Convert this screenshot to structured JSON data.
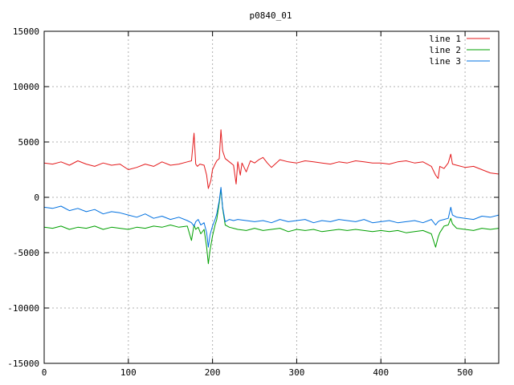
{
  "chart_data": {
    "type": "line",
    "title": "p0840_01",
    "xlabel": "",
    "ylabel": "",
    "xlim": [
      0,
      540
    ],
    "ylim": [
      -15000,
      15000
    ],
    "x_ticks": [
      0,
      100,
      200,
      300,
      400,
      500
    ],
    "y_ticks": [
      -15000,
      -10000,
      -5000,
      0,
      5000,
      10000,
      15000
    ],
    "grid": true,
    "legend_position": "top-right",
    "series": [
      {
        "name": "line 1",
        "color": "#e41a1c",
        "x": [
          0,
          10,
          20,
          30,
          40,
          50,
          60,
          70,
          80,
          90,
          100,
          110,
          120,
          130,
          140,
          150,
          160,
          170,
          175,
          178,
          180,
          182,
          185,
          190,
          193,
          195,
          198,
          200,
          203,
          205,
          208,
          210,
          212,
          215,
          220,
          225,
          228,
          230,
          233,
          235,
          240,
          245,
          250,
          255,
          260,
          265,
          270,
          280,
          290,
          300,
          310,
          320,
          330,
          340,
          350,
          360,
          370,
          380,
          390,
          400,
          410,
          420,
          430,
          440,
          450,
          460,
          465,
          468,
          470,
          475,
          480,
          483,
          485,
          490,
          500,
          510,
          520,
          530,
          540
        ],
        "y": [
          3100,
          3000,
          3200,
          2900,
          3300,
          3000,
          2800,
          3100,
          2900,
          3000,
          2500,
          2700,
          3000,
          2800,
          3200,
          2900,
          3000,
          3200,
          3300,
          5800,
          3000,
          2800,
          3000,
          2900,
          2000,
          800,
          1500,
          2500,
          3000,
          3300,
          3500,
          6100,
          4200,
          3500,
          3200,
          2900,
          1200,
          3200,
          2000,
          3100,
          2300,
          3300,
          3100,
          3400,
          3600,
          3100,
          2700,
          3400,
          3200,
          3100,
          3300,
          3200,
          3100,
          3000,
          3200,
          3100,
          3300,
          3200,
          3100,
          3100,
          3000,
          3200,
          3300,
          3100,
          3200,
          2800,
          2000,
          1700,
          2800,
          2600,
          3100,
          3900,
          3000,
          2900,
          2700,
          2800,
          2500,
          2200,
          2100
        ]
      },
      {
        "name": "line 2",
        "color": "#00a000",
        "x": [
          0,
          10,
          20,
          30,
          40,
          50,
          60,
          70,
          80,
          90,
          100,
          110,
          120,
          130,
          140,
          150,
          160,
          170,
          175,
          178,
          180,
          183,
          186,
          190,
          193,
          195,
          197,
          200,
          203,
          205,
          208,
          210,
          212,
          215,
          220,
          225,
          230,
          240,
          250,
          260,
          270,
          280,
          290,
          300,
          310,
          320,
          330,
          340,
          350,
          360,
          370,
          380,
          390,
          400,
          410,
          420,
          430,
          440,
          450,
          460,
          465,
          468,
          470,
          475,
          480,
          483,
          485,
          490,
          500,
          510,
          520,
          530,
          540
        ],
        "y": [
          -2700,
          -2800,
          -2600,
          -2900,
          -2700,
          -2800,
          -2600,
          -2900,
          -2700,
          -2800,
          -2900,
          -2700,
          -2800,
          -2600,
          -2700,
          -2500,
          -2700,
          -2600,
          -3900,
          -2500,
          -2900,
          -2700,
          -3300,
          -2900,
          -4500,
          -6000,
          -4800,
          -3500,
          -2500,
          -2000,
          -500,
          800,
          -1000,
          -2500,
          -2700,
          -2800,
          -2900,
          -3000,
          -2800,
          -3000,
          -2900,
          -2800,
          -3100,
          -2900,
          -3000,
          -2900,
          -3100,
          -3000,
          -2900,
          -3000,
          -2900,
          -3000,
          -3100,
          -3000,
          -3100,
          -3000,
          -3200,
          -3100,
          -3000,
          -3300,
          -4500,
          -3600,
          -3200,
          -2600,
          -2500,
          -1900,
          -2400,
          -2800,
          -2900,
          -3000,
          -2800,
          -2900,
          -2800
        ]
      },
      {
        "name": "line 3",
        "color": "#0070e0",
        "x": [
          0,
          10,
          20,
          30,
          40,
          50,
          60,
          70,
          80,
          90,
          100,
          110,
          120,
          130,
          140,
          150,
          160,
          170,
          175,
          178,
          180,
          183,
          186,
          190,
          193,
          195,
          197,
          200,
          203,
          205,
          208,
          210,
          212,
          215,
          220,
          225,
          230,
          240,
          250,
          260,
          270,
          280,
          290,
          300,
          310,
          320,
          330,
          340,
          350,
          360,
          370,
          380,
          390,
          400,
          410,
          420,
          430,
          440,
          450,
          460,
          465,
          468,
          470,
          475,
          480,
          483,
          485,
          490,
          500,
          510,
          520,
          530,
          540
        ],
        "y": [
          -900,
          -1000,
          -800,
          -1200,
          -1000,
          -1300,
          -1100,
          -1500,
          -1300,
          -1400,
          -1600,
          -1800,
          -1500,
          -1900,
          -1700,
          -2000,
          -1800,
          -2100,
          -2300,
          -2600,
          -2200,
          -2000,
          -2500,
          -2300,
          -3200,
          -4500,
          -3400,
          -2600,
          -2000,
          -1500,
          -300,
          900,
          -900,
          -2200,
          -2000,
          -2100,
          -2000,
          -2100,
          -2200,
          -2100,
          -2300,
          -2000,
          -2200,
          -2100,
          -2000,
          -2300,
          -2100,
          -2200,
          -2000,
          -2100,
          -2200,
          -2000,
          -2300,
          -2200,
          -2100,
          -2300,
          -2200,
          -2100,
          -2300,
          -2000,
          -2500,
          -2200,
          -2100,
          -2000,
          -1900,
          -900,
          -1600,
          -1800,
          -1900,
          -2000,
          -1700,
          -1800,
          -1600
        ]
      }
    ]
  }
}
